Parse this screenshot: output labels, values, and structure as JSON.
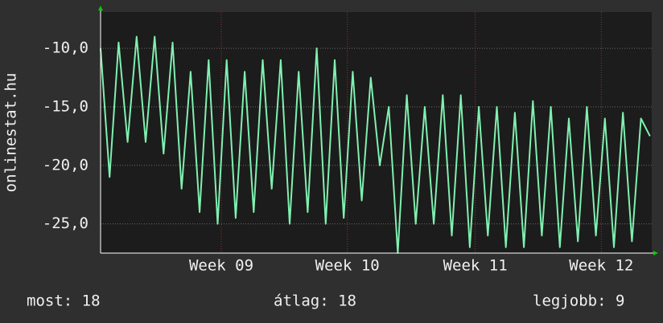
{
  "chart_data": {
    "type": "line",
    "ylabel": "onlinestat.hu",
    "x": [
      0,
      0.5,
      1,
      1.5,
      2,
      2.5,
      3,
      3.5,
      4,
      4.5,
      5,
      5.5,
      6,
      6.5,
      7,
      7.5,
      8,
      8.5,
      9,
      9.5,
      10,
      10.5,
      11,
      11.5,
      12,
      12.5,
      13,
      13.5,
      14,
      14.5,
      15,
      15.5,
      16,
      16.5,
      17,
      17.5,
      18,
      18.5,
      19,
      19.5,
      20,
      20.5,
      21,
      21.5,
      22,
      22.5,
      23,
      23.5,
      24,
      24.5,
      25,
      25.5,
      26,
      26.5,
      27,
      27.5,
      28,
      28.5,
      29,
      29.5,
      30,
      30.5
    ],
    "series": [
      {
        "color": "#80f0b0",
        "values": [
          -10,
          -21,
          -9.5,
          -18,
          -9,
          -18,
          -9,
          -19,
          -9.5,
          -22,
          -12,
          -24,
          -11,
          -25,
          -11,
          -24.5,
          -12,
          -24,
          -11,
          -22,
          -11,
          -25,
          -12,
          -24,
          -10,
          -25,
          -11,
          -24.5,
          -12,
          -23,
          -12.5,
          -20,
          -15,
          -27.5,
          -14,
          -25,
          -15,
          -25,
          -14,
          -26,
          -14,
          -27,
          -15,
          -26,
          -15,
          -27,
          -15.5,
          -27,
          -14.5,
          -26,
          -15,
          -27,
          -16,
          -26.5,
          -15,
          -26,
          -16,
          -27,
          -15.5,
          -26.5,
          -16,
          -17.5
        ]
      }
    ],
    "xlim": [
      0,
      30.6
    ],
    "xticks": [
      {
        "value": 6.7,
        "label": "Week 09"
      },
      {
        "value": 13.7,
        "label": "Week 10"
      },
      {
        "value": 20.8,
        "label": "Week 11"
      },
      {
        "value": 27.8,
        "label": "Week 12"
      }
    ],
    "ylim": [
      -27.5,
      -6.9
    ],
    "yticks": [
      {
        "value": -10,
        "label": "-10,0"
      },
      {
        "value": -15,
        "label": "-15,0"
      },
      {
        "value": -20,
        "label": "-20,0"
      },
      {
        "value": -25,
        "label": "-25,0"
      }
    ],
    "grid": true,
    "footer": [
      "most: 18",
      "átlag: 18",
      "legjobb: 9"
    ]
  }
}
